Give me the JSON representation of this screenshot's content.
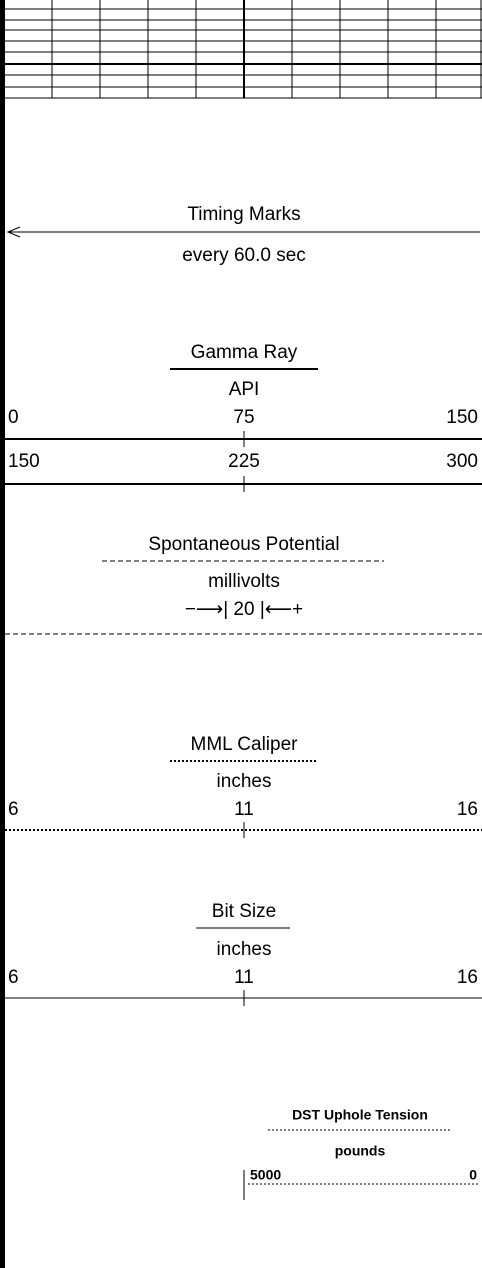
{
  "timing": {
    "title": "Timing Marks",
    "subtitle": "every 60.0 sec"
  },
  "gamma_ray": {
    "title": "Gamma Ray",
    "unit": "API",
    "scale1": [
      0,
      75,
      150
    ],
    "scale2": [
      150,
      225,
      300
    ]
  },
  "spontaneous_potential": {
    "title": "Spontaneous Potential",
    "unit": "millivolts",
    "scale": "−⟶| 20 |⟵+"
  },
  "mml_caliper": {
    "title": "MML Caliper",
    "unit": "inches",
    "scale": [
      6,
      11,
      16
    ]
  },
  "bit_size": {
    "title": "Bit Size",
    "unit": "inches",
    "scale": [
      6,
      11,
      16
    ]
  },
  "dst_uphole_tension": {
    "title": "DST Uphole Tension",
    "unit": "pounds",
    "scale": [
      5000,
      0
    ]
  }
}
